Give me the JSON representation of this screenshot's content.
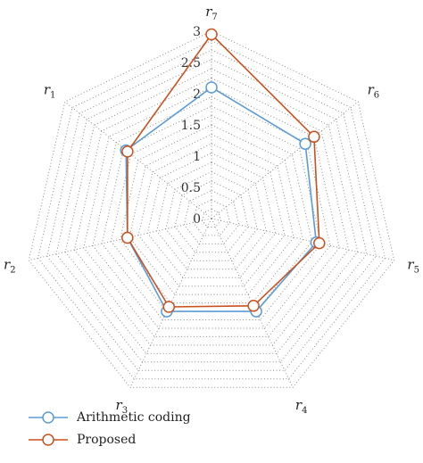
{
  "chart_data": {
    "type": "radar",
    "axes": [
      {
        "base": "r",
        "sub": "7"
      },
      {
        "base": "r",
        "sub": "6"
      },
      {
        "base": "r",
        "sub": "5"
      },
      {
        "base": "r",
        "sub": "4"
      },
      {
        "base": "r",
        "sub": "3"
      },
      {
        "base": "r",
        "sub": "2"
      },
      {
        "base": "r",
        "sub": "1"
      }
    ],
    "rlim": [
      0,
      3
    ],
    "ticks": [
      "0",
      "0.5",
      "1",
      "1.5",
      "2",
      "2.5",
      "3"
    ],
    "grid": "dotted",
    "legend_position": "bottom-left",
    "series": [
      {
        "name": "Arithmetic coding",
        "color": "#5b9bd5",
        "values": [
          2.1,
          1.92,
          1.72,
          1.65,
          1.65,
          1.38,
          1.75
        ]
      },
      {
        "name": "Proposed",
        "color": "#c8521f",
        "values": [
          2.95,
          2.1,
          1.77,
          1.55,
          1.57,
          1.38,
          1.72
        ]
      }
    ]
  }
}
